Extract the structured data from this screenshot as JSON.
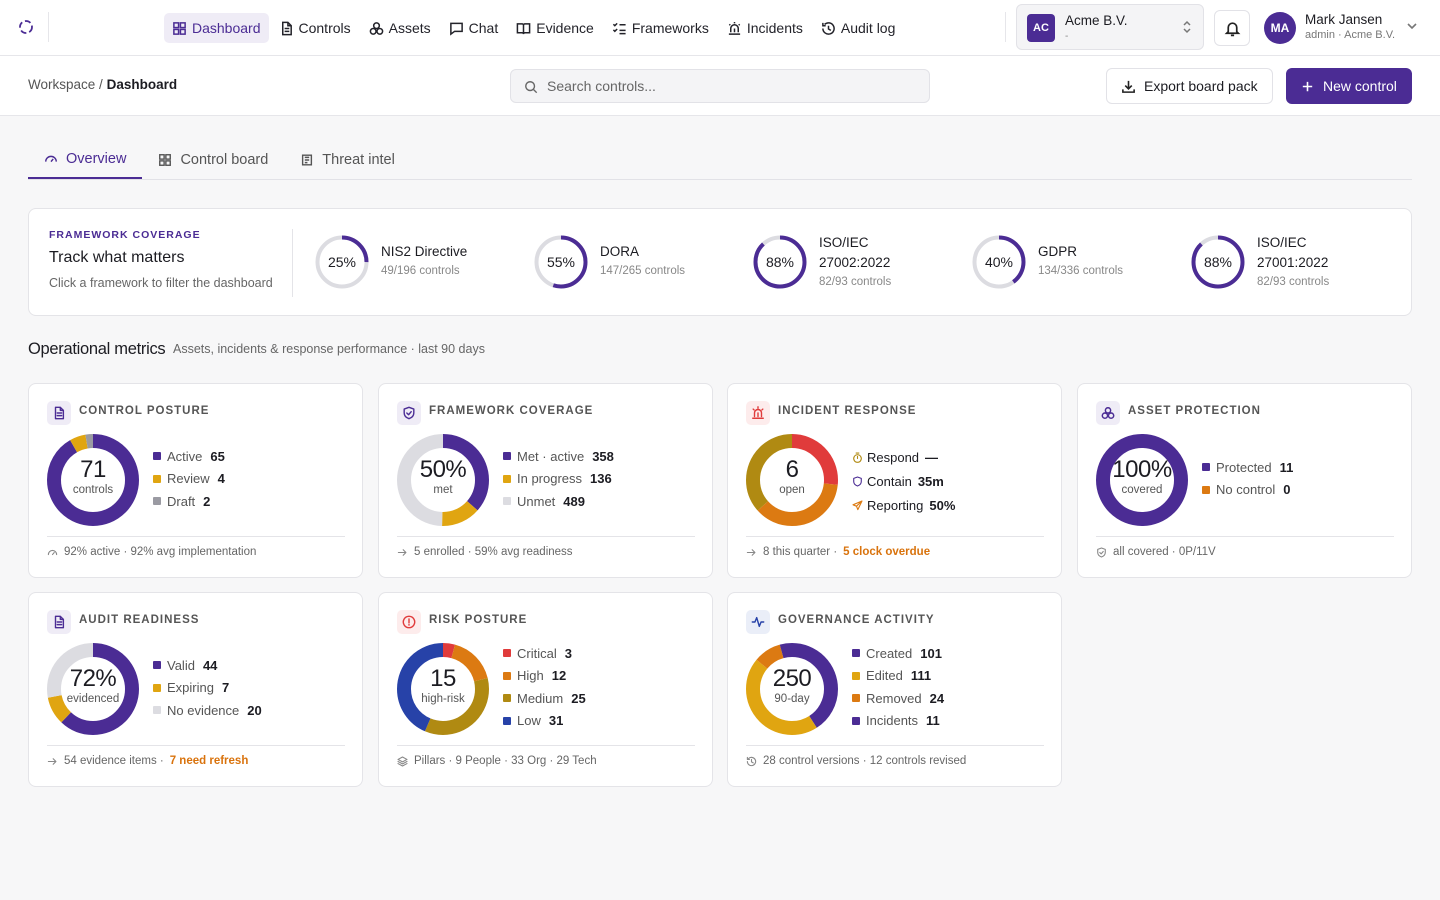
{
  "nav": {
    "items": [
      {
        "label": "Dashboard",
        "icon": "dashboard-icon",
        "active": true
      },
      {
        "label": "Controls",
        "icon": "document-icon"
      },
      {
        "label": "Assets",
        "icon": "assets-icon"
      },
      {
        "label": "Chat",
        "icon": "chat-icon"
      },
      {
        "label": "Evidence",
        "icon": "book-icon"
      },
      {
        "label": "Frameworks",
        "icon": "checklist-icon"
      },
      {
        "label": "Incidents",
        "icon": "siren-icon"
      },
      {
        "label": "Audit log",
        "icon": "history-icon"
      }
    ]
  },
  "org": {
    "initials": "AC",
    "name": "Acme B.V.",
    "sub": "-"
  },
  "user": {
    "initials": "MA",
    "name": "Mark Jansen",
    "role": "admin · Acme B.V."
  },
  "breadcrumb": {
    "root": "Workspace",
    "separator": "/",
    "current": "Dashboard"
  },
  "search": {
    "placeholder": "Search controls...",
    "value": ""
  },
  "actions": {
    "export_label": "Export board pack",
    "new_label": "New control"
  },
  "tabs": [
    {
      "label": "Overview",
      "active": true
    },
    {
      "label": "Control board"
    },
    {
      "label": "Threat intel"
    }
  ],
  "framework_coverage": {
    "kicker": "FRAMEWORK COVERAGE",
    "title": "Track what matters",
    "description": "Click a framework to filter the dashboard",
    "items": [
      {
        "pct_label": "25%",
        "pct": 25,
        "name_lines": [
          "NIS2 Directive"
        ],
        "count": "49/196 controls"
      },
      {
        "pct_label": "55%",
        "pct": 55,
        "name_lines": [
          "DORA"
        ],
        "count": "147/265 controls"
      },
      {
        "pct_label": "88%",
        "pct": 88,
        "name_lines": [
          "ISO/IEC",
          "27002:2022"
        ],
        "count": "82/93 controls"
      },
      {
        "pct_label": "40%",
        "pct": 40,
        "name_lines": [
          "GDPR"
        ],
        "count": "134/336 controls"
      },
      {
        "pct_label": "88%",
        "pct": 88,
        "name_lines": [
          "ISO/IEC",
          "27001:2022"
        ],
        "count": "82/93 controls"
      }
    ]
  },
  "metrics": {
    "title": "Operational metrics",
    "subtitle": "Assets, incidents & response performance · last 90 days"
  },
  "colors": {
    "purple": "#4b2c94",
    "amber": "#e0a511",
    "gray": "#9a9aa2",
    "light": "#dcdce1",
    "red": "#e03b3b",
    "orange": "#dc7a12",
    "olive": "#b08a12",
    "blue": "#2742a8"
  },
  "cards": [
    {
      "title": "CONTROL POSTURE",
      "icon": "document-icon",
      "value": "71",
      "label": "controls",
      "segments": [
        {
          "color": "#4b2c94",
          "value": 65
        },
        {
          "color": "#e0a511",
          "value": 4
        },
        {
          "color": "#9a9aa2",
          "value": 2
        }
      ],
      "legend": [
        {
          "label": "Active",
          "value": "65",
          "color": "#4b2c94"
        },
        {
          "label": "Review",
          "value": "4",
          "color": "#e0a511"
        },
        {
          "label": "Draft",
          "value": "2",
          "color": "#9a9aa2"
        }
      ],
      "foot": "92% active · 92% avg implementation",
      "foot_icon": "gauge-icon",
      "foot_warn": ""
    },
    {
      "title": "FRAMEWORK COVERAGE",
      "icon": "shield-check-icon",
      "value": "50%",
      "label": "met",
      "segments": [
        {
          "color": "#4b2c94",
          "value": 358
        },
        {
          "color": "#e0a511",
          "value": 136
        },
        {
          "color": "#dcdce1",
          "value": 489
        }
      ],
      "legend": [
        {
          "label": "Met · active",
          "value": "358",
          "color": "#4b2c94"
        },
        {
          "label": "In progress",
          "value": "136",
          "color": "#e0a511"
        },
        {
          "label": "Unmet",
          "value": "489",
          "color": "#dcdce1"
        }
      ],
      "foot": "5 enrolled · 59% avg readiness",
      "foot_icon": "arrow-right-icon",
      "foot_warn": ""
    },
    {
      "title": "INCIDENT RESPONSE",
      "icon": "siren-icon",
      "value": "6",
      "label": "open",
      "segments": [
        {
          "color": "#e03b3b",
          "value": 1.6
        },
        {
          "color": "#dc7a12",
          "value": 2.2
        },
        {
          "color": "#b08a12",
          "value": 2.2
        }
      ],
      "legend": [
        {
          "label": "Respond",
          "value": "—",
          "icon": "timer-icon",
          "color": "#b08a12"
        },
        {
          "label": "Contain",
          "value": "35m",
          "icon": "shield-icon",
          "color": "#4b2c94"
        },
        {
          "label": "Reporting",
          "value": "50%",
          "icon": "send-icon",
          "color": "#dc7a12"
        }
      ],
      "foot": "8 this quarter ·",
      "foot_icon": "arrow-right-icon",
      "foot_warn": "5 clock overdue"
    },
    {
      "title": "ASSET PROTECTION",
      "icon": "assets-icon",
      "value": "100%",
      "label": "covered",
      "segments": [
        {
          "color": "#4b2c94",
          "value": 11
        }
      ],
      "legend": [
        {
          "label": "Protected",
          "value": "11",
          "color": "#4b2c94"
        },
        {
          "label": "No control",
          "value": "0",
          "color": "#dc7a12"
        }
      ],
      "foot": "all covered · 0P/11V",
      "foot_icon": "shield-check-icon",
      "foot_warn": ""
    },
    {
      "title": "AUDIT READINESS",
      "icon": "document-icon",
      "value": "72%",
      "label": "evidenced",
      "segments": [
        {
          "color": "#4b2c94",
          "value": 44
        },
        {
          "color": "#e0a511",
          "value": 7
        },
        {
          "color": "#dcdce1",
          "value": 20
        }
      ],
      "legend": [
        {
          "label": "Valid",
          "value": "44",
          "color": "#4b2c94"
        },
        {
          "label": "Expiring",
          "value": "7",
          "color": "#e0a511"
        },
        {
          "label": "No evidence",
          "value": "20",
          "color": "#dcdce1"
        }
      ],
      "foot": "54 evidence items ·",
      "foot_icon": "arrow-right-icon",
      "foot_warn": "7 need refresh"
    },
    {
      "title": "RISK POSTURE",
      "icon": "alert-circle-icon",
      "value": "15",
      "label": "high-risk",
      "segments": [
        {
          "color": "#e03b3b",
          "value": 3
        },
        {
          "color": "#dc7a12",
          "value": 12
        },
        {
          "color": "#b08a12",
          "value": 25
        },
        {
          "color": "#2742a8",
          "value": 31
        }
      ],
      "legend": [
        {
          "label": "Critical",
          "value": "3",
          "color": "#e03b3b"
        },
        {
          "label": "High",
          "value": "12",
          "color": "#dc7a12"
        },
        {
          "label": "Medium",
          "value": "25",
          "color": "#b08a12"
        },
        {
          "label": "Low",
          "value": "31",
          "color": "#2742a8"
        }
      ],
      "foot": "Pillars · 9 People · 33 Org · 29 Tech",
      "foot_icon": "layers-icon",
      "foot_warn": ""
    },
    {
      "title": "GOVERNANCE ACTIVITY",
      "icon": "activity-icon",
      "value": "250",
      "label": "90-day",
      "segments": [
        {
          "color": "#4b2c94",
          "value": 101
        },
        {
          "color": "#e0a511",
          "value": 111
        },
        {
          "color": "#dc7a12",
          "value": 24
        },
        {
          "color": "#4b2c94",
          "value": 11
        }
      ],
      "legend": [
        {
          "label": "Created",
          "value": "101",
          "color": "#4b2c94"
        },
        {
          "label": "Edited",
          "value": "111",
          "color": "#e0a511"
        },
        {
          "label": "Removed",
          "value": "24",
          "color": "#dc7a12"
        },
        {
          "label": "Incidents",
          "value": "11",
          "color": "#4b2c94"
        }
      ],
      "foot": "28 control versions · 12 controls revised",
      "foot_icon": "history-icon",
      "foot_warn": ""
    }
  ]
}
